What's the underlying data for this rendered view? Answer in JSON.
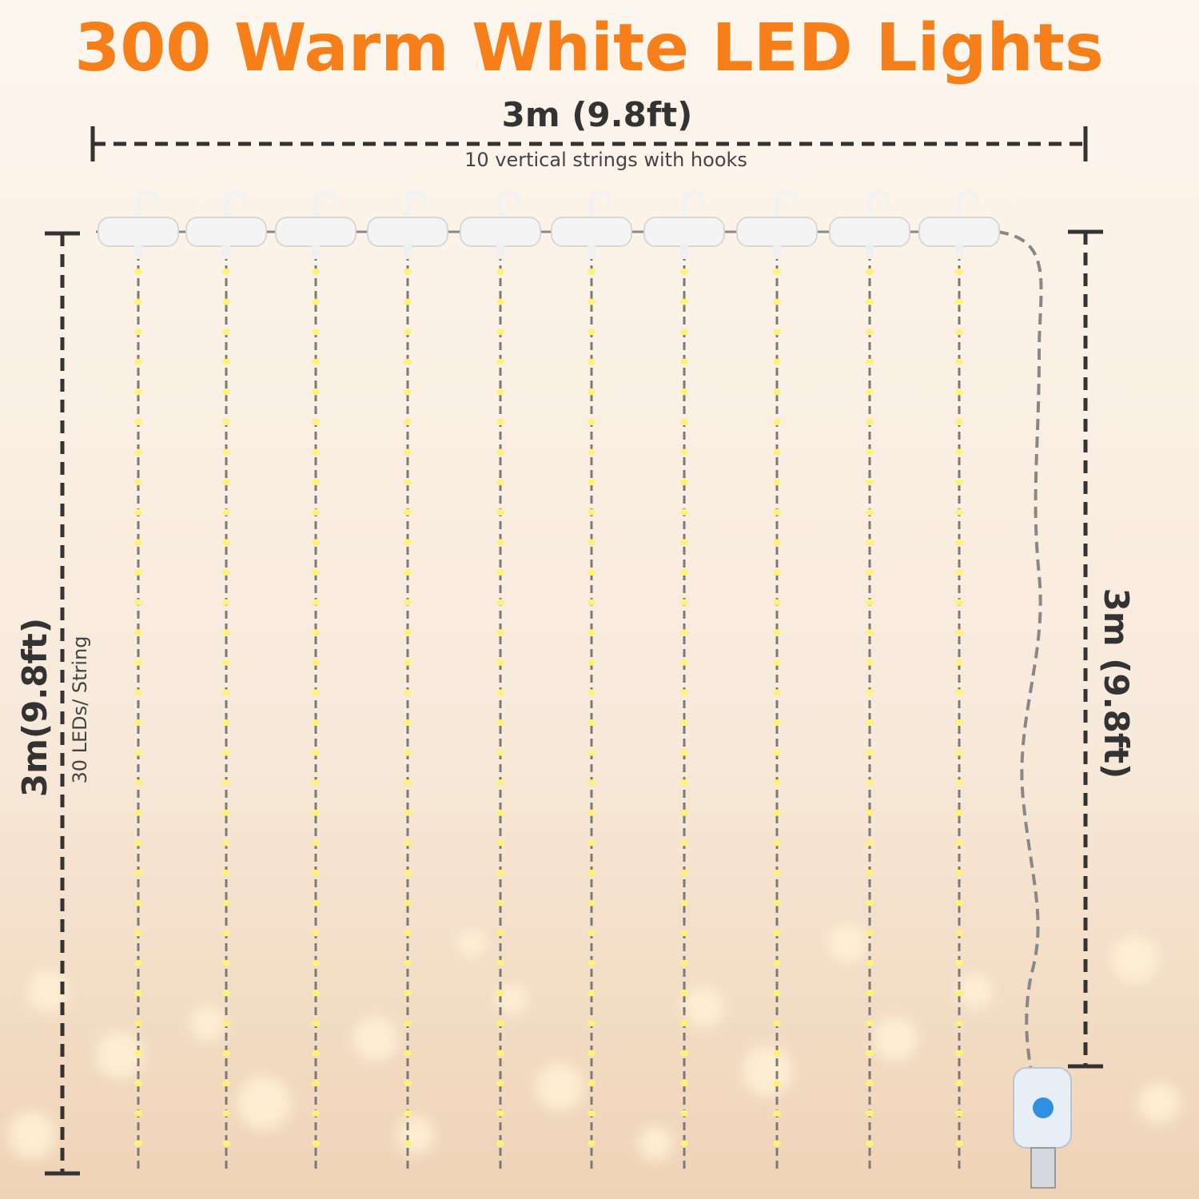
{
  "header": {
    "title": "300 Warm White LED Lights"
  },
  "width": {
    "label": "3m (9.8ft)",
    "note": "10 vertical strings with hooks"
  },
  "left_height": {
    "label": "3m(9.8ft)",
    "note": "30 LEDs/ String"
  },
  "right_height": {
    "label": "3m (9.8ft)"
  }
}
